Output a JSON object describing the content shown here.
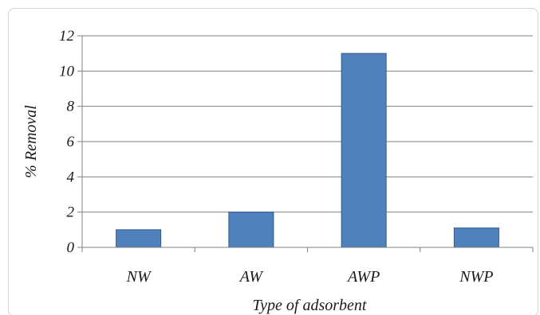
{
  "chart_data": {
    "type": "bar",
    "categories": [
      "NW",
      "AW",
      "AWP",
      "NWP"
    ],
    "values": [
      1,
      2,
      11,
      1.1
    ],
    "xlabel": "Type of adsorbent",
    "ylabel": "% Removal",
    "ylim": [
      0,
      12
    ],
    "yticks": [
      0,
      2,
      4,
      6,
      8,
      10,
      12
    ],
    "grid": true,
    "bar_color": "#4f81bd",
    "bar_edge_color": "#2e5a8f"
  }
}
